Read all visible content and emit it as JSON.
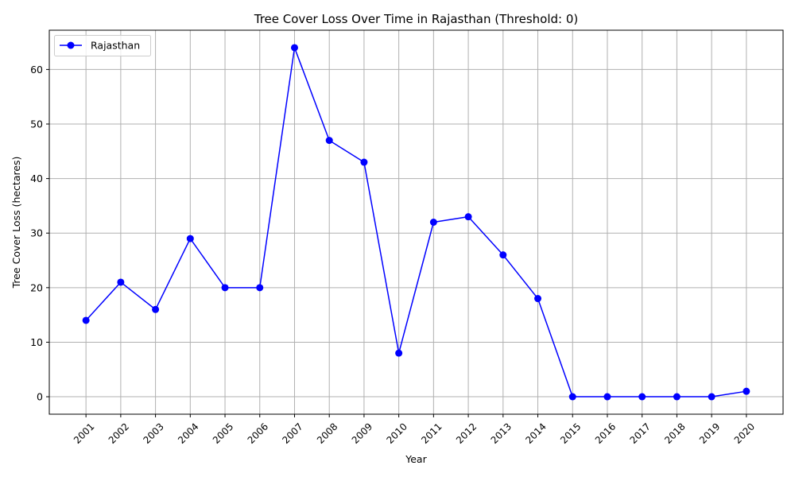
{
  "chart_data": {
    "type": "line",
    "title": "Tree Cover Loss Over Time in Rajasthan (Threshold: 0)",
    "xlabel": "Year",
    "ylabel": "Tree Cover Loss (hectares)",
    "categories": [
      "2001",
      "2002",
      "2003",
      "2004",
      "2005",
      "2006",
      "2007",
      "2008",
      "2009",
      "2010",
      "2011",
      "2012",
      "2013",
      "2014",
      "2015",
      "2016",
      "2017",
      "2018",
      "2019",
      "2020"
    ],
    "series": [
      {
        "name": "Rajasthan",
        "color": "#0000ff",
        "marker": "circle",
        "values": [
          14,
          21,
          16,
          29,
          20,
          20,
          64,
          47,
          43,
          8,
          32,
          33,
          26,
          18,
          0,
          0,
          0,
          0,
          0,
          1
        ]
      }
    ],
    "ylim": [
      -3.2,
      67.2
    ],
    "yticks": [
      0,
      10,
      20,
      30,
      40,
      50,
      60
    ],
    "grid": true,
    "legend_position": "top-left",
    "xtick_rotation": 45
  }
}
